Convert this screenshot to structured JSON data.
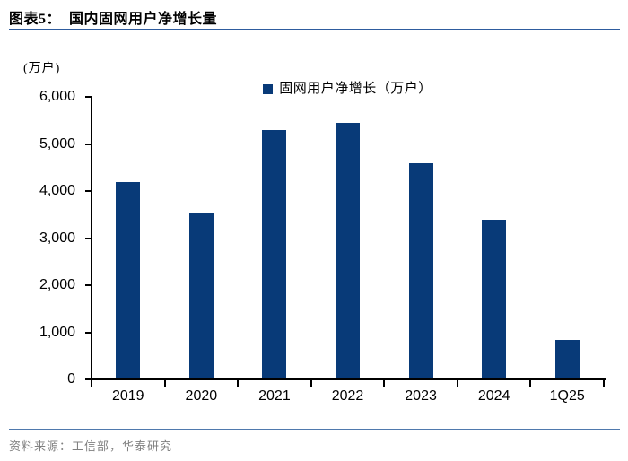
{
  "header": {
    "title": "图表5：  国内固网用户净增长量"
  },
  "chart_data": {
    "type": "bar",
    "title": "图表5：国内固网用户净增长量",
    "unit_label": "(万户)",
    "legend": [
      "固网用户净增长（万户）"
    ],
    "legend_position": "top-center",
    "categories": [
      "2019",
      "2020",
      "2021",
      "2022",
      "2023",
      "2024",
      "1Q25"
    ],
    "values": [
      4180,
      3510,
      5270,
      5420,
      4570,
      3370,
      810
    ],
    "ylim": [
      0,
      6000
    ],
    "ytick_interval": 1000,
    "ytick_labels": [
      "6,000",
      "5,000",
      "4,000",
      "3,000",
      "2,000",
      "1,000",
      "0"
    ],
    "grid": false,
    "bar_color": "#083A78"
  },
  "footer": {
    "source": "资料来源：工信部，华泰研究"
  },
  "colors": {
    "bar": "#083A78",
    "title_rule": "#2E5C9E",
    "footer_rule": "#4F79AD",
    "source_text": "#808080",
    "axis": "#000000"
  }
}
